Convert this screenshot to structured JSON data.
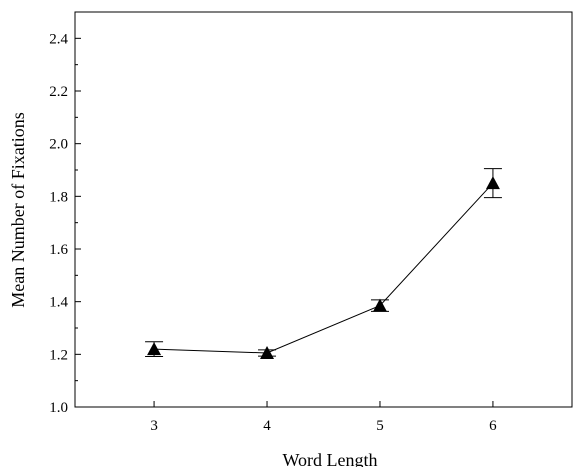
{
  "chart_data": {
    "type": "line",
    "title": "",
    "xlabel": "Word Length",
    "ylabel": "Mean Number of Fixations",
    "x": [
      3,
      4,
      5,
      6
    ],
    "x_ticks": [
      "3",
      "4",
      "5",
      "6"
    ],
    "xlim": [
      2.3,
      6.7
    ],
    "ylim": [
      1.0,
      2.5
    ],
    "y_ticks": [
      "1.0",
      "1.2",
      "1.4",
      "1.6",
      "1.8",
      "2.0",
      "2.2",
      "2.4"
    ],
    "grid": false,
    "legend": "none",
    "marker": "triangle",
    "series": [
      {
        "values": [
          1.22,
          1.205,
          1.385,
          1.85
        ],
        "error": [
          0.028,
          0.012,
          0.022,
          0.055
        ]
      }
    ]
  }
}
